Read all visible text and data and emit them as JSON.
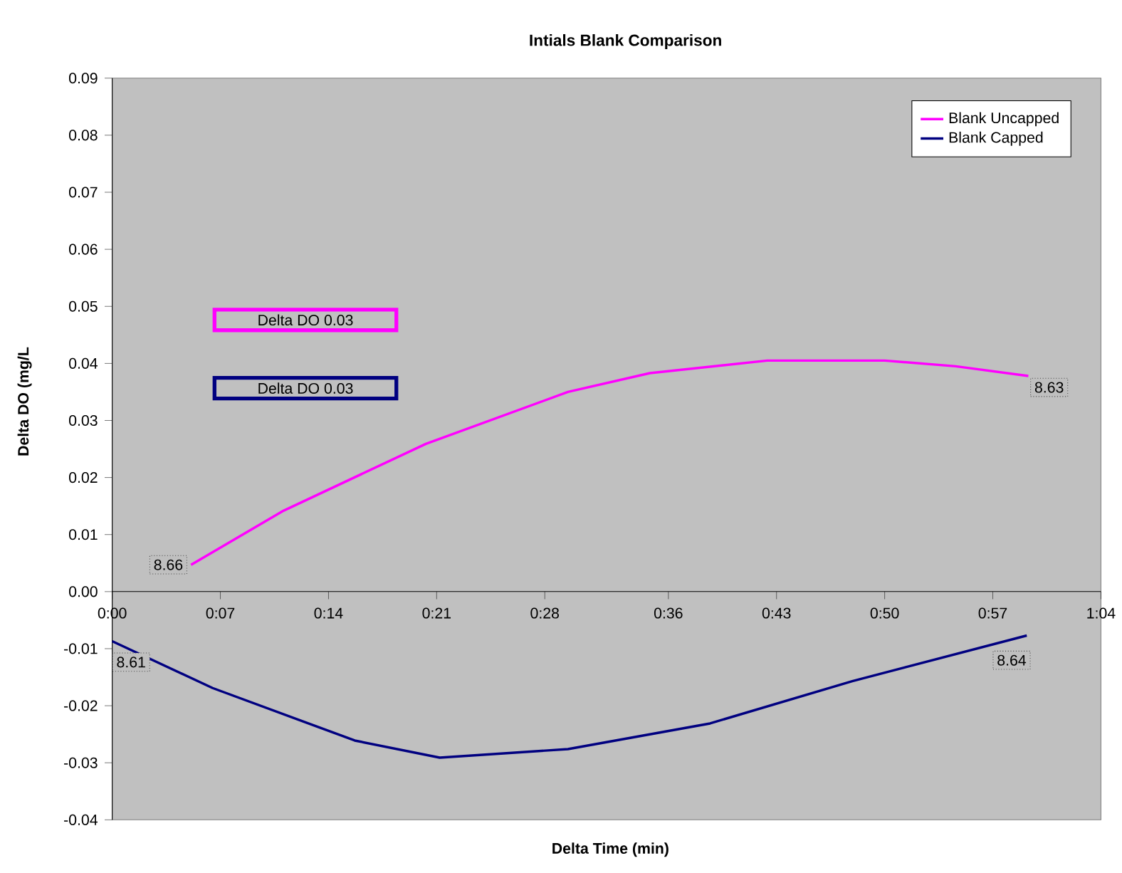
{
  "chart_data": {
    "type": "line",
    "title": "Intials Blank Comparison",
    "xlabel": "Delta Time (min)",
    "ylabel": "Delta DO (mg/L",
    "x": [
      5.1,
      11.1,
      20.3,
      29.5,
      34.8,
      42.4,
      50.0,
      54.6,
      59.3
    ],
    "series": [
      {
        "name": "Blank Uncapped",
        "color": "#ff00ff",
        "values": [
          0.0047,
          0.0142,
          0.0259,
          0.035,
          0.0383,
          0.0405,
          0.0405,
          0.0395,
          0.0378
        ]
      },
      {
        "name": "Blank Capped",
        "color": "#000080",
        "x": [
          0.0,
          6.5,
          15.7,
          21.2,
          29.5,
          38.7,
          47.9,
          59.2
        ],
        "values": [
          -0.0087,
          -0.0169,
          -0.0261,
          -0.0291,
          -0.0276,
          -0.0231,
          -0.0157,
          -0.0077
        ]
      }
    ],
    "xlim": [
      0,
      64
    ],
    "ylim": [
      -0.04,
      0.09
    ],
    "xticks": [
      {
        "value": 0,
        "label": "0:00"
      },
      {
        "value": 7,
        "label": "0:07"
      },
      {
        "value": 14,
        "label": "0:14"
      },
      {
        "value": 21,
        "label": "0:21"
      },
      {
        "value": 28,
        "label": "0:28"
      },
      {
        "value": 36,
        "label": "0:36"
      },
      {
        "value": 43,
        "label": "0:43"
      },
      {
        "value": 50,
        "label": "0:50"
      },
      {
        "value": 57,
        "label": "0:57"
      },
      {
        "value": 64,
        "label": "1:04"
      }
    ],
    "yticks": [
      {
        "value": -0.04,
        "label": "-0.04"
      },
      {
        "value": -0.03,
        "label": "-0.03"
      },
      {
        "value": -0.02,
        "label": "-0.02"
      },
      {
        "value": -0.01,
        "label": "-0.01"
      },
      {
        "value": 0,
        "label": "0.00"
      },
      {
        "value": 0.01,
        "label": "0.01"
      },
      {
        "value": 0.02,
        "label": "0.02"
      },
      {
        "value": 0.03,
        "label": "0.03"
      },
      {
        "value": 0.04,
        "label": "0.04"
      },
      {
        "value": 0.05,
        "label": "0.05"
      },
      {
        "value": 0.06,
        "label": "0.06"
      },
      {
        "value": 0.07,
        "label": "0.07"
      },
      {
        "value": 0.08,
        "label": "0.08"
      },
      {
        "value": 0.09,
        "label": "0.09"
      }
    ],
    "annotations": [
      "Delta DO 0.03",
      "Delta DO 0.03",
      {
        "text": "8.66",
        "x": 5.1,
        "y": 0.0047
      },
      {
        "text": "8.63",
        "x": 59.3,
        "y": 0.0378
      },
      {
        "text": "8.61",
        "x": 0.0,
        "y": -0.0087
      },
      {
        "text": "8.64",
        "x": 59.2,
        "y": -0.0077
      }
    ],
    "legend": "top right",
    "grid": false,
    "marker": "none",
    "line_style": "solid"
  }
}
